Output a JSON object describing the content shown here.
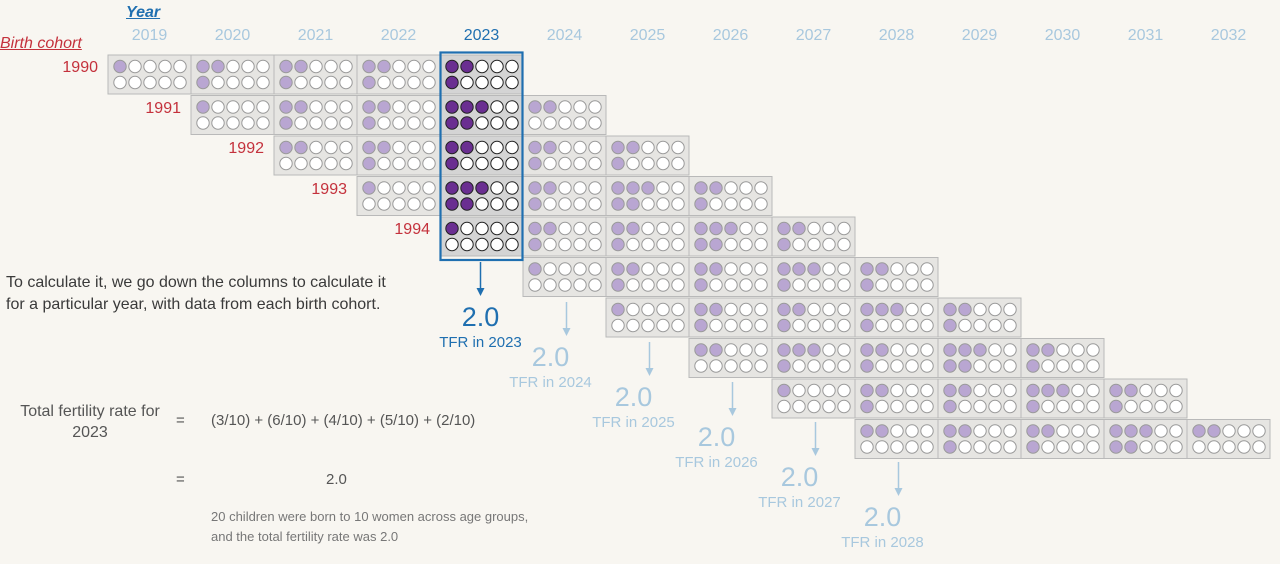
{
  "headers": {
    "year_title": "Year",
    "cohort_title": "Birth cohort"
  },
  "years": [
    "2019",
    "2020",
    "2021",
    "2022",
    "2023",
    "2024",
    "2025",
    "2026",
    "2027",
    "2028",
    "2029",
    "2030",
    "2031",
    "2032"
  ],
  "highlight_year": "2023",
  "cohorts": [
    {
      "label": "1990",
      "start": "2019",
      "cells": [
        [
          1,
          0,
          2,
          1,
          0
        ],
        [
          2,
          1,
          2,
          1,
          0
        ],
        [
          2,
          1,
          0,
          2,
          1
        ],
        [
          2,
          1,
          3,
          1,
          0
        ],
        [
          2,
          1,
          2,
          1,
          0
        ]
      ]
    },
    {
      "label": "1991",
      "start": "2020",
      "cells": [
        [
          1,
          0,
          0,
          1,
          0
        ],
        [
          2,
          1,
          2,
          1,
          0
        ],
        [
          2,
          1,
          2,
          1,
          0
        ],
        [
          3,
          2,
          3,
          2,
          0
        ],
        [
          2,
          0,
          0,
          1,
          0
        ]
      ]
    },
    {
      "label": "1992",
      "start": "2021",
      "cells": [
        [
          2,
          0,
          0,
          1,
          0
        ],
        [
          2,
          1,
          0,
          2,
          1
        ],
        [
          2,
          1,
          0,
          2,
          0
        ],
        [
          2,
          1,
          0,
          2,
          0
        ],
        [
          2,
          1,
          0,
          1,
          0
        ]
      ]
    },
    {
      "label": "1993",
      "start": "2022",
      "cells": [
        [
          1,
          0,
          0,
          1,
          0
        ],
        [
          3,
          2,
          3,
          1,
          0
        ],
        [
          2,
          1,
          0,
          2,
          1
        ],
        [
          3,
          2,
          0,
          3,
          1
        ],
        [
          2,
          1,
          0,
          2,
          0
        ]
      ]
    },
    {
      "label": "1994",
      "start": "2023",
      "cells": [
        [
          1,
          0,
          0,
          1,
          0
        ],
        [
          2,
          1,
          2,
          1,
          0
        ],
        [
          2,
          1,
          0,
          2,
          0
        ],
        [
          3,
          2,
          0,
          3,
          1
        ],
        [
          2,
          1,
          0,
          2,
          1
        ]
      ]
    },
    {
      "label": "",
      "start": "2024",
      "cells": [
        [
          1,
          0,
          0,
          1,
          0
        ],
        [
          2,
          1,
          0,
          2,
          0
        ],
        [
          2,
          1,
          0,
          2,
          0
        ],
        [
          3,
          1,
          0,
          2,
          0
        ],
        [
          2,
          1,
          0,
          1,
          0
        ]
      ]
    },
    {
      "label": "",
      "start": "2025",
      "cells": [
        [
          1,
          0,
          2,
          1,
          0
        ],
        [
          2,
          1,
          2,
          1,
          0
        ],
        [
          2,
          1,
          0,
          2,
          1
        ],
        [
          3,
          1,
          0,
          2,
          0
        ],
        [
          2,
          1,
          0,
          1,
          0
        ]
      ]
    },
    {
      "label": "",
      "start": "2026",
      "cells": [
        [
          2,
          0,
          0,
          1,
          0
        ],
        [
          3,
          1,
          2,
          1,
          0
        ],
        [
          2,
          1,
          2,
          1,
          0
        ],
        [
          3,
          2,
          3,
          1,
          0
        ],
        [
          2,
          1,
          0,
          1,
          0
        ]
      ]
    },
    {
      "label": "",
      "start": "2027",
      "cells": [
        [
          1,
          0,
          0,
          1,
          0
        ],
        [
          2,
          1,
          2,
          1,
          0
        ],
        [
          2,
          1,
          0,
          2,
          1
        ],
        [
          3,
          1,
          0,
          2,
          1
        ],
        [
          2,
          1,
          0,
          1,
          0
        ]
      ]
    },
    {
      "label": "",
      "start": "2028",
      "cells": [
        [
          2,
          0,
          0,
          1,
          0
        ],
        [
          2,
          1,
          2,
          1,
          0
        ],
        [
          2,
          1,
          2,
          1,
          0
        ],
        [
          3,
          2,
          3,
          2,
          0
        ],
        [
          2,
          0,
          0,
          1,
          0
        ]
      ]
    }
  ],
  "tfr_results": [
    {
      "year": "2023",
      "value": "2.0",
      "caption": "TFR in 2023",
      "highlight": true
    },
    {
      "year": "2024",
      "value": "2.0",
      "caption": "TFR in 2024",
      "highlight": false
    },
    {
      "year": "2025",
      "value": "2.0",
      "caption": "TFR in 2025",
      "highlight": false
    },
    {
      "year": "2026",
      "value": "2.0",
      "caption": "TFR in 2026",
      "highlight": false
    },
    {
      "year": "2027",
      "value": "2.0",
      "caption": "TFR in 2027",
      "highlight": false
    },
    {
      "year": "2028",
      "value": "2.0",
      "caption": "TFR in 2028",
      "highlight": false
    }
  ],
  "explanation": "To calculate it, we go down the columns to calculate it for a particular year, with data from each birth cohort.",
  "formula": {
    "label": "Total fertility rate for 2023",
    "eq": "=",
    "expression": "(3/10) + (6/10) + (4/10) + (5/10) + (2/10)",
    "result": "2.0",
    "note": "20 children were born to 10 women across age groups, and the total fertility rate was 2.0"
  },
  "colors": {
    "highlight_blue": "#1f6fb0",
    "faded_blue": "#a8c8de",
    "cohort_red": "#c4313c",
    "cell_bg": "#e6e5e2",
    "cell_border": "#b9b9b9",
    "dot_light_purple": "#b9a6d2",
    "dot_dark_purple": "#6a2e91",
    "dot_empty": "#ffffff"
  }
}
